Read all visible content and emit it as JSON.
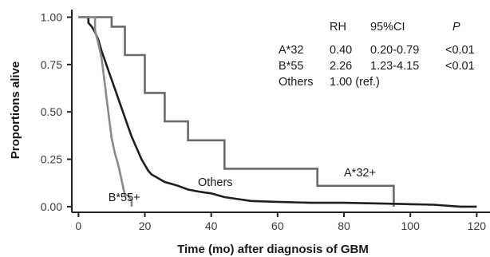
{
  "chart_data": {
    "type": "line",
    "step": true,
    "xlabel": "Time (mo) after diagnosis of GBM",
    "ylabel": "Proportions alive",
    "xlim": [
      -2,
      124
    ],
    "ylim": [
      -0.03,
      1.04
    ],
    "xticks": [
      "0",
      "20",
      "40",
      "60",
      "80",
      "100",
      "120"
    ],
    "xtick_values": [
      0,
      20,
      40,
      60,
      80,
      100,
      120
    ],
    "yticks": [
      "0.00",
      "0.25",
      "0.50",
      "0.75",
      "1.00"
    ],
    "ytick_values": [
      0,
      0.25,
      0.5,
      0.75,
      1.0
    ],
    "grid": false,
    "series": [
      {
        "name": "A*32+",
        "color": "#6a6a6a",
        "points": [
          [
            0,
            1.0
          ],
          [
            10,
            1.0
          ],
          [
            10,
            0.95
          ],
          [
            14,
            0.95
          ],
          [
            14,
            0.8
          ],
          [
            20,
            0.8
          ],
          [
            20,
            0.6
          ],
          [
            26,
            0.6
          ],
          [
            26,
            0.45
          ],
          [
            33,
            0.45
          ],
          [
            33,
            0.35
          ],
          [
            44,
            0.35
          ],
          [
            44,
            0.2
          ],
          [
            72,
            0.2
          ],
          [
            72,
            0.11
          ],
          [
            95,
            0.11
          ],
          [
            95,
            0.0
          ]
        ]
      },
      {
        "name": "Others",
        "color": "#1e1e1e",
        "points": [
          [
            0,
            1.0
          ],
          [
            3,
            1.0
          ],
          [
            3,
            0.97
          ],
          [
            4,
            0.95
          ],
          [
            5,
            0.92
          ],
          [
            6,
            0.88
          ],
          [
            7,
            0.82
          ],
          [
            8,
            0.77
          ],
          [
            9,
            0.72
          ],
          [
            10,
            0.67
          ],
          [
            11,
            0.62
          ],
          [
            12,
            0.57
          ],
          [
            13,
            0.52
          ],
          [
            14,
            0.47
          ],
          [
            15,
            0.42
          ],
          [
            16,
            0.37
          ],
          [
            17,
            0.33
          ],
          [
            18,
            0.29
          ],
          [
            19,
            0.25
          ],
          [
            20,
            0.22
          ],
          [
            21,
            0.19
          ],
          [
            22,
            0.17
          ],
          [
            24,
            0.15
          ],
          [
            26,
            0.13
          ],
          [
            28,
            0.12
          ],
          [
            30,
            0.11
          ],
          [
            33,
            0.09
          ],
          [
            36,
            0.08
          ],
          [
            40,
            0.07
          ],
          [
            44,
            0.05
          ],
          [
            48,
            0.04
          ],
          [
            52,
            0.03
          ],
          [
            60,
            0.025
          ],
          [
            70,
            0.02
          ],
          [
            80,
            0.02
          ],
          [
            95,
            0.015
          ],
          [
            107,
            0.01
          ],
          [
            115,
            0.0
          ],
          [
            120,
            0.0
          ]
        ]
      },
      {
        "name": "B*55+",
        "color": "#8a8a8a",
        "points": [
          [
            0,
            1.0
          ],
          [
            5,
            1.0
          ],
          [
            5,
            0.93
          ],
          [
            6,
            0.86
          ],
          [
            7,
            0.78
          ],
          [
            8,
            0.64
          ],
          [
            9,
            0.5
          ],
          [
            10,
            0.36
          ],
          [
            11,
            0.28
          ],
          [
            12,
            0.22
          ],
          [
            13,
            0.14
          ],
          [
            14,
            0.06
          ],
          [
            15,
            0.06
          ],
          [
            16,
            0.03
          ],
          [
            16,
            0.0
          ]
        ]
      }
    ],
    "annotations": [
      {
        "text": "A*32+",
        "x": 80,
        "y": 0.16
      },
      {
        "text": "Others",
        "x": 36,
        "y": 0.11
      },
      {
        "text": "B*55+",
        "x": 9,
        "y": 0.03
      }
    ],
    "table": {
      "header": [
        "RH",
        "95%CI",
        "P"
      ],
      "rows": [
        [
          "A*32",
          "0.40",
          "0.20-0.79",
          "<0.01"
        ],
        [
          "B*55",
          "2.26",
          "1.23-4.15",
          "<0.01"
        ],
        [
          "Others",
          "1.00 (ref.)",
          "",
          ""
        ]
      ]
    }
  }
}
